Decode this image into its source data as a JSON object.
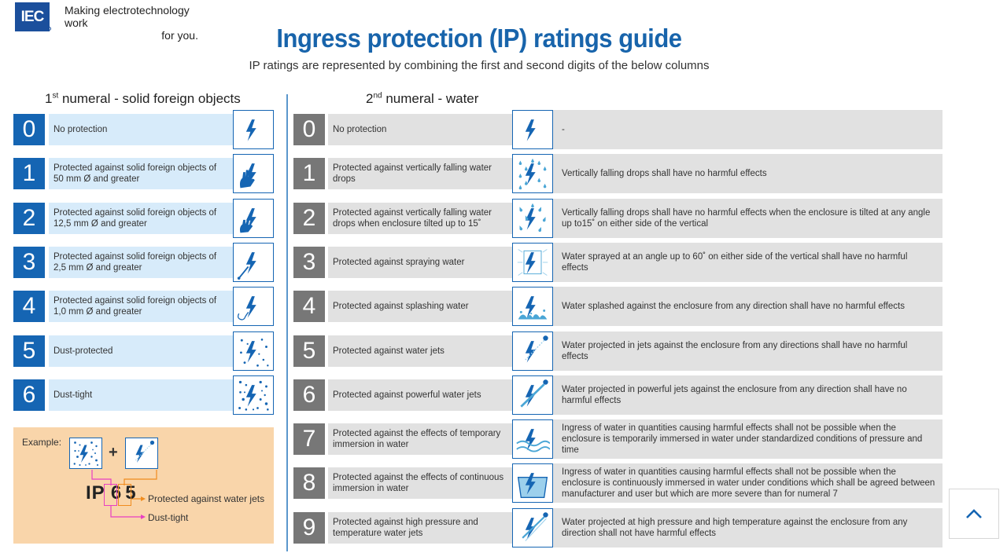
{
  "brand": {
    "logo_text": "IEC",
    "tagline_line1": "Making  electrotechnology work",
    "tagline_line2": "for you."
  },
  "title": "Ingress protection (IP) ratings guide",
  "subtitle": "IP ratings are represented by combining the first and second digits of the below columns",
  "solids": {
    "heading_num": "1",
    "heading_sup": "st",
    "heading_text": " numeral - solid foreign objects",
    "rows": [
      {
        "num": "0",
        "desc": "No protection",
        "icon": "lightning-icon"
      },
      {
        "num": "1",
        "desc": "Protected against solid foreign objects of 50 mm Ø and greater",
        "icon": "hand-icon"
      },
      {
        "num": "2",
        "desc": "Protected against solid foreign objects of 12,5 mm Ø and greater",
        "icon": "finger-icon"
      },
      {
        "num": "3",
        "desc": "Protected against solid foreign objects of 2,5 mm Ø and greater",
        "icon": "tool-icon"
      },
      {
        "num": "4",
        "desc": "Protected against solid foreign objects of 1,0 mm Ø and greater",
        "icon": "wire-icon"
      },
      {
        "num": "5",
        "desc": "Dust-protected",
        "icon": "dust-icon"
      },
      {
        "num": "6",
        "desc": "Dust-tight",
        "icon": "dense-dust-icon"
      }
    ]
  },
  "water": {
    "heading_num": "2",
    "heading_sup": "nd",
    "heading_text": " numeral - water",
    "rows": [
      {
        "num": "0",
        "desc": "No protection",
        "icon": "lightning-icon",
        "detail": "-"
      },
      {
        "num": "1",
        "desc": "Protected against vertically falling water drops",
        "icon": "falling-drops-icon",
        "detail": "Vertically falling drops shall have no harmful effects"
      },
      {
        "num": "2",
        "desc": "Protected against vertically falling water drops when enclosure tilted up to 15˚",
        "icon": "tilted-drops-icon",
        "detail": "Vertically falling drops shall have no harmful effects when the enclosure is tilted at any angle up to15˚ on either side of the vertical"
      },
      {
        "num": "3",
        "desc": "Protected against spraying water",
        "icon": "spray-icon",
        "detail": "Water sprayed at an angle up to 60˚ on either side of the vertical shall have no harmful effects"
      },
      {
        "num": "4",
        "desc": "Protected against splashing water",
        "icon": "splash-icon",
        "detail": "Water splashed against the enclosure from any direction shall have no harmful effects"
      },
      {
        "num": "5",
        "desc": "Protected against water jets",
        "icon": "water-jet-icon",
        "detail": "Water projected in jets against the enclosure from any directions shall have no harmful effects"
      },
      {
        "num": "6",
        "desc": "Protected against powerful water jets",
        "icon": "powerful-jet-icon",
        "detail": "Water projected in powerful jets against the enclosure from any direction shall have no harmful effects"
      },
      {
        "num": "7",
        "desc": "Protected against the effects of temporary immersion in water",
        "icon": "temporary-immersion-icon",
        "detail": "Ingress of water in quantities causing harmful effects shall not be possible when the enclosure is temporarily immersed in water under standardized conditions of pressure and time"
      },
      {
        "num": "8",
        "desc": "Protected against the effects of continuous immersion in water",
        "icon": "continuous-immersion-icon",
        "detail": "Ingress of water in quantities causing harmful effects shall not be possible when the enclosure is continuously immersed in water under conditions which shall be agreed between manufacturer and user but which are more severe than for numeral 7"
      },
      {
        "num": "9",
        "desc": "Protected against high pressure and temperature water jets",
        "icon": "high-pressure-jet-icon",
        "detail": "Water projected at high pressure and high temperature against the enclosure from any direction shall not have harmful effects"
      }
    ]
  },
  "example": {
    "label": "Example:",
    "plus": "+",
    "prefix": "IP",
    "digit1": "6",
    "digit2": "5",
    "note1": "Protected against water jets",
    "note2": "Dust-tight"
  },
  "colors": {
    "accent_blue": "#1565b3",
    "title_blue": "#1864ab",
    "solids_bg": "#d7ebfa",
    "water_bg": "#e1e1e1",
    "example_bg": "#f9d5aa",
    "orange_line": "#f08c1e",
    "magenta_line": "#e83fc2"
  },
  "scroll_top_icon": "chevron-up-icon"
}
